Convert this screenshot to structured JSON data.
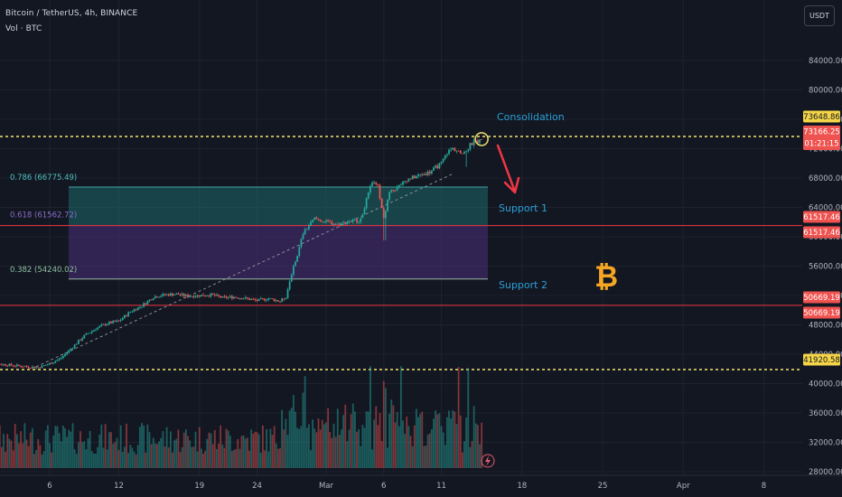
{
  "header": {
    "title": "Bitcoin / TetherUS, 4h, BINANCE",
    "volume_label": "Vol · BTC",
    "currency_button": "USDT"
  },
  "colors": {
    "background": "#131722",
    "up": "#26a69a",
    "down": "#ef5350",
    "dashed": "#e2d56b",
    "fib_zone_upper": "#1f7a7a",
    "fib_zone_lower": "#4a2f7a",
    "support_line": "#f23645",
    "annotation_text": "#2b9fd6",
    "bitcoin_symbol": "#f5a623",
    "arrow": "#f23645"
  },
  "chart_data": {
    "type": "candlestick",
    "symbol": "BTCUSDT",
    "interval": "4h",
    "exchange": "BINANCE",
    "y_ticks": [
      "84000.00",
      "80000.00",
      "76000.00",
      "72000.00",
      "68000.00",
      "64000.00",
      "60000.00",
      "56000.00",
      "52000.00",
      "48000.00",
      "44000.00",
      "40000.00",
      "36000.00",
      "32000.00",
      "28000.00"
    ],
    "ylim": [
      27000,
      88000
    ],
    "x_ticks": [
      {
        "label": "6",
        "day": 6
      },
      {
        "label": "12",
        "day": 12
      },
      {
        "label": "19",
        "day": 19
      },
      {
        "label": "24",
        "day": 24
      },
      {
        "label": "Mar",
        "day": 30
      },
      {
        "label": "6",
        "day": 35
      },
      {
        "label": "11",
        "day": 40
      },
      {
        "label": "18",
        "day": 47
      },
      {
        "label": "25",
        "day": 54
      },
      {
        "label": "Apr",
        "day": 61
      },
      {
        "label": "8",
        "day": 68
      }
    ],
    "close_path": [
      [
        0.5,
        42800
      ],
      [
        2,
        42600
      ],
      [
        4,
        42300
      ],
      [
        5,
        42200
      ],
      [
        6,
        42700
      ],
      [
        7,
        43500
      ],
      [
        8,
        45000
      ],
      [
        9,
        46500
      ],
      [
        10,
        47500
      ],
      [
        11,
        48200
      ],
      [
        12,
        48500
      ],
      [
        13,
        49800
      ],
      [
        14,
        50600
      ],
      [
        15,
        51800
      ],
      [
        16,
        52100
      ],
      [
        17,
        52200
      ],
      [
        18,
        51900
      ],
      [
        19,
        52000
      ],
      [
        20,
        52100
      ],
      [
        21,
        51700
      ],
      [
        22,
        51800
      ],
      [
        23,
        51600
      ],
      [
        24,
        51300
      ],
      [
        25,
        51600
      ],
      [
        26,
        51200
      ],
      [
        26.5,
        51800
      ],
      [
        27,
        55000
      ],
      [
        27.5,
        57500
      ],
      [
        28,
        60500
      ],
      [
        29,
        62500
      ],
      [
        30,
        62000
      ],
      [
        31,
        61700
      ],
      [
        32,
        62100
      ],
      [
        33,
        62300
      ],
      [
        33.5,
        65000
      ],
      [
        34,
        67500
      ],
      [
        34.5,
        66800
      ],
      [
        35,
        62500
      ],
      [
        35.5,
        66000
      ],
      [
        36,
        66500
      ],
      [
        37,
        67800
      ],
      [
        38,
        68300
      ],
      [
        39,
        68800
      ],
      [
        40,
        70000
      ],
      [
        40.5,
        71500
      ],
      [
        41,
        72000
      ],
      [
        42,
        71300
      ],
      [
        42.5,
        72500
      ],
      [
        43,
        73000
      ],
      [
        43.5,
        73100
      ]
    ],
    "volume_range": [
      1000,
      11500
    ],
    "levels": [
      {
        "name": "dashed_resistance",
        "price": 73648.86,
        "label": "73648.86",
        "label_color": "#f5d547"
      },
      {
        "name": "last_price",
        "price": 73166.25,
        "label": "73166.25",
        "label_color": "#ef5350",
        "countdown": "01:21:15"
      },
      {
        "name": "support_1",
        "price": 61517.46,
        "label": "61517.46",
        "label_color": "#ef5350"
      },
      {
        "name": "support_2",
        "price": 50669.19,
        "label": "50669.19",
        "label_color": "#ef5350"
      },
      {
        "name": "dashed_support",
        "price": 41920.58,
        "label": "41920.58",
        "label_color": "#f5d547"
      }
    ],
    "fib": [
      {
        "label": "0.786 (66775.49)",
        "price": 66775.49
      },
      {
        "label": "0.618 (61562.72)",
        "price": 61562.72
      },
      {
        "label": "0.382 (54240.02)",
        "price": 54240.02
      }
    ],
    "annotations": {
      "consolidation": "Consolidation",
      "support1": "Support 1",
      "support2": "Support 2",
      "bitcoin_symbol": "₿"
    }
  }
}
